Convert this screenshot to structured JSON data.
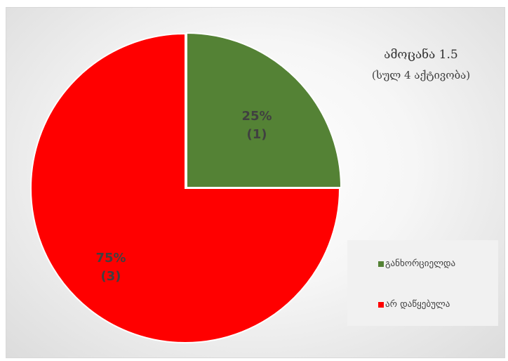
{
  "chart_data": {
    "type": "pie",
    "title": "ამოცანა 1.5",
    "subtitle": "(სულ 4 აქტივობა)",
    "categories": [
      "განხორციელდა",
      "არ დაწყებულა"
    ],
    "values": [
      1,
      3
    ],
    "percentages": [
      "25%",
      "75%"
    ],
    "count_labels": [
      "(1)",
      "(3)"
    ],
    "colors": [
      "#548235",
      "#ff0000"
    ],
    "legend_position": "bottom-right"
  }
}
